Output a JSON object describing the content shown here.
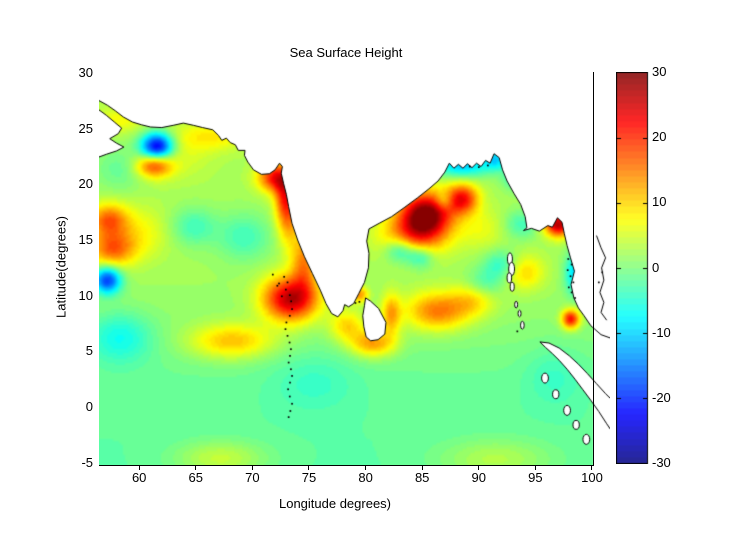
{
  "figure": {
    "title": "Sea Surface Height"
  },
  "axes": {
    "xlabel": "Longitude degrees)",
    "ylabel": "Latitude(degrees)",
    "x_ticks": [
      60,
      65,
      70,
      75,
      80,
      85,
      90,
      95,
      100
    ],
    "y_ticks": [
      30,
      25,
      20,
      15,
      10,
      5,
      0,
      -5
    ]
  },
  "colorbar": {
    "min": -30,
    "max": 30,
    "ticks": [
      30,
      20,
      10,
      0,
      -10,
      -20,
      -30
    ],
    "colormap": "jet"
  },
  "chart_data": {
    "type": "heatmap",
    "title": "Sea Surface Height",
    "xlabel": "Longitude degrees)",
    "ylabel": "Latitude(degrees)",
    "region": "Indian Ocean (Arabian Sea, Bay of Bengal, Andaman Sea)",
    "lon_range": [
      56.45,
      100.1
    ],
    "lat_range": [
      -5.2,
      30.0
    ],
    "value_range": [
      -30,
      30
    ],
    "grid": false,
    "base_field": {
      "north": 2.4,
      "south": -2.0,
      "transition_lat": 6.0,
      "transition_width": 2.5
    },
    "anomaly_format": [
      "lon",
      "lat",
      "amplitude",
      "sigma_lon",
      "sigma_lat"
    ],
    "anomalies": [
      [
        61.6,
        23.4,
        -27,
        1.0,
        0.85
      ],
      [
        61.3,
        21.7,
        16,
        1.1,
        0.75
      ],
      [
        58.3,
        25.8,
        5,
        1.4,
        0.8
      ],
      [
        66.5,
        24.3,
        6,
        2.2,
        0.9
      ],
      [
        72.1,
        20.6,
        19,
        1.1,
        0.9
      ],
      [
        72.9,
        19.0,
        13,
        0.65,
        1.4
      ],
      [
        73.2,
        17.0,
        11,
        0.7,
        1.8
      ],
      [
        74.6,
        13.0,
        12,
        0.8,
        1.8
      ],
      [
        57.3,
        16.8,
        14,
        1.2,
        1.0
      ],
      [
        57.6,
        14.2,
        14,
        1.4,
        1.1
      ],
      [
        60.0,
        15.6,
        5,
        1.8,
        1.6
      ],
      [
        57.2,
        11.4,
        -21,
        0.85,
        0.85
      ],
      [
        58.3,
        6.3,
        -7,
        2.0,
        1.6
      ],
      [
        64.8,
        16.2,
        -6,
        1.4,
        1.2
      ],
      [
        69.3,
        15.3,
        -6,
        1.7,
        1.5
      ],
      [
        58.3,
        21.4,
        -4,
        1.6,
        1.4
      ],
      [
        73.4,
        9.7,
        25,
        1.7,
        1.4
      ],
      [
        68.2,
        5.9,
        11,
        2.6,
        1.1
      ],
      [
        79.5,
        10.1,
        12,
        0.55,
        0.5
      ],
      [
        80.7,
        5.7,
        13,
        1.4,
        0.85
      ],
      [
        78.4,
        7.3,
        9,
        1.1,
        1.0
      ],
      [
        85.4,
        17.3,
        28,
        1.6,
        1.4
      ],
      [
        88.6,
        18.7,
        19,
        1.0,
        0.95
      ],
      [
        84.2,
        15.3,
        13,
        2.0,
        1.4
      ],
      [
        88.6,
        21.7,
        -13,
        1.7,
        0.75
      ],
      [
        91.6,
        22.3,
        -11,
        0.8,
        0.7
      ],
      [
        83.1,
        14.1,
        -11,
        0.95,
        0.8
      ],
      [
        84.9,
        13.5,
        -9,
        0.85,
        0.75
      ],
      [
        86.4,
        8.6,
        14,
        2.0,
        1.2
      ],
      [
        89.6,
        9.6,
        7,
        1.4,
        1.0
      ],
      [
        97.1,
        16.4,
        25,
        0.85,
        0.75
      ],
      [
        93.8,
        16.4,
        -6,
        1.1,
        0.9
      ],
      [
        94.1,
        12.1,
        8,
        1.2,
        1.1
      ],
      [
        92.1,
        12.8,
        -7,
        1.1,
        0.95
      ],
      [
        90.6,
        11.1,
        -5,
        1.1,
        0.95
      ],
      [
        98.2,
        7.9,
        21,
        0.55,
        0.6
      ],
      [
        98.5,
        12.0,
        -11,
        0.6,
        1.3
      ],
      [
        67.2,
        -4.6,
        6,
        2.8,
        1.1
      ],
      [
        91.5,
        -4.7,
        5,
        3.5,
        1.3
      ],
      [
        96.8,
        2.8,
        -3,
        1.8,
        1.8
      ],
      [
        75.5,
        2.3,
        -3,
        2.6,
        1.8
      ],
      [
        82.3,
        8.3,
        11,
        0.6,
        1.3
      ],
      [
        87.0,
        18.5,
        -7,
        0.55,
        0.55
      ],
      [
        90.3,
        16.0,
        4,
        1.6,
        1.3
      ],
      [
        63.5,
        22.6,
        3,
        2.0,
        1.5
      ],
      [
        93.1,
        20.6,
        -6,
        0.7,
        0.8
      ]
    ],
    "coastlines": {
      "mainland": [
        [
          56.4,
          27.55
        ],
        [
          57.2,
          27.1
        ],
        [
          57.9,
          26.6
        ],
        [
          58.6,
          26.05
        ],
        [
          59.4,
          25.6
        ],
        [
          60.2,
          25.35
        ],
        [
          61.0,
          25.15
        ],
        [
          62.0,
          25.1
        ],
        [
          63.0,
          25.3
        ],
        [
          63.9,
          25.5
        ],
        [
          64.8,
          25.3
        ],
        [
          65.6,
          25.1
        ],
        [
          66.5,
          24.9
        ],
        [
          67.0,
          24.4
        ],
        [
          67.3,
          23.95
        ],
        [
          67.7,
          24.15
        ],
        [
          68.05,
          23.75
        ],
        [
          68.5,
          23.55
        ],
        [
          68.75,
          23.05
        ],
        [
          69.35,
          23.05
        ],
        [
          69.3,
          22.6
        ],
        [
          69.6,
          22.0
        ],
        [
          70.1,
          21.3
        ],
        [
          70.8,
          20.9
        ],
        [
          71.5,
          20.95
        ],
        [
          72.0,
          21.3
        ],
        [
          72.4,
          21.9
        ],
        [
          72.65,
          21.6
        ],
        [
          72.55,
          21.0
        ],
        [
          72.75,
          20.1
        ],
        [
          73.0,
          19.1
        ],
        [
          73.2,
          18.0
        ],
        [
          73.5,
          16.5
        ],
        [
          74.0,
          15.0
        ],
        [
          74.6,
          13.5
        ],
        [
          75.3,
          12.0
        ],
        [
          76.0,
          10.5
        ],
        [
          76.5,
          9.3
        ],
        [
          77.0,
          8.4
        ],
        [
          77.55,
          8.1
        ],
        [
          78.0,
          8.65
        ],
        [
          78.15,
          9.2
        ],
        [
          78.5,
          9.0
        ],
        [
          78.95,
          9.3
        ],
        [
          79.4,
          10.2
        ],
        [
          79.9,
          11.2
        ],
        [
          80.25,
          12.5
        ],
        [
          80.3,
          13.8
        ],
        [
          80.1,
          14.9
        ],
        [
          80.3,
          16.0
        ],
        [
          81.2,
          16.5
        ],
        [
          82.3,
          17.1
        ],
        [
          83.4,
          17.9
        ],
        [
          84.6,
          18.8
        ],
        [
          85.6,
          19.6
        ],
        [
          86.4,
          20.3
        ],
        [
          87.0,
          21.1
        ],
        [
          87.4,
          21.9
        ],
        [
          87.8,
          21.45
        ],
        [
          88.2,
          21.8
        ],
        [
          88.6,
          21.45
        ],
        [
          89.0,
          21.85
        ],
        [
          89.4,
          21.5
        ],
        [
          89.8,
          21.9
        ],
        [
          90.2,
          21.6
        ],
        [
          90.6,
          22.15
        ],
        [
          91.0,
          21.9
        ],
        [
          91.35,
          22.75
        ],
        [
          91.8,
          22.4
        ],
        [
          92.1,
          21.3
        ],
        [
          92.5,
          20.3
        ],
        [
          93.1,
          19.2
        ],
        [
          93.7,
          18.2
        ],
        [
          94.1,
          17.1
        ],
        [
          94.25,
          16.1
        ],
        [
          93.95,
          15.85
        ],
        [
          94.65,
          16.05
        ],
        [
          95.35,
          15.8
        ],
        [
          96.1,
          16.3
        ],
        [
          96.5,
          16.15
        ],
        [
          96.95,
          17.0
        ],
        [
          97.35,
          16.6
        ],
        [
          97.55,
          15.6
        ],
        [
          97.8,
          14.5
        ],
        [
          98.1,
          13.4
        ],
        [
          98.45,
          12.2
        ],
        [
          98.15,
          11.0
        ],
        [
          98.4,
          9.8
        ],
        [
          98.8,
          8.9
        ],
        [
          99.3,
          8.2
        ],
        [
          99.9,
          7.3
        ],
        [
          100.8,
          6.5
        ],
        [
          101.9,
          6.1
        ],
        [
          101.9,
          30.6
        ],
        [
          56.4,
          30.6
        ]
      ],
      "arabia": [
        [
          56.3,
          26.8
        ],
        [
          57.1,
          26.2
        ],
        [
          57.8,
          25.6
        ],
        [
          58.45,
          25.05
        ],
        [
          58.15,
          24.55
        ],
        [
          57.4,
          24.1
        ],
        [
          58.0,
          23.7
        ],
        [
          58.65,
          23.35
        ],
        [
          58.0,
          23.0
        ],
        [
          57.1,
          22.7
        ],
        [
          56.3,
          22.4
        ]
      ],
      "sri_lanka": [
        [
          80.0,
          9.8
        ],
        [
          80.45,
          9.5
        ],
        [
          81.15,
          8.85
        ],
        [
          81.8,
          7.6
        ],
        [
          81.7,
          6.55
        ],
        [
          81.1,
          6.05
        ],
        [
          80.45,
          5.95
        ],
        [
          80.05,
          6.3
        ],
        [
          79.85,
          7.2
        ],
        [
          79.75,
          8.2
        ],
        [
          79.9,
          9.1
        ]
      ],
      "sumatra": [
        [
          95.4,
          5.85
        ],
        [
          95.9,
          5.35
        ],
        [
          96.5,
          4.8
        ],
        [
          97.1,
          4.2
        ],
        [
          97.8,
          3.4
        ],
        [
          98.5,
          2.5
        ],
        [
          99.2,
          1.55
        ],
        [
          99.9,
          0.6
        ],
        [
          100.6,
          -0.4
        ],
        [
          101.3,
          -1.5
        ],
        [
          101.9,
          -2.4
        ],
        [
          101.9,
          0.5
        ],
        [
          101.2,
          1.2
        ],
        [
          100.4,
          2.1
        ],
        [
          99.6,
          3.0
        ],
        [
          98.8,
          3.85
        ],
        [
          98.0,
          4.6
        ],
        [
          97.1,
          5.3
        ],
        [
          96.2,
          5.75
        ]
      ]
    },
    "island_ellipse_format": [
      "lon",
      "lat",
      "radius_lon",
      "radius_lat"
    ],
    "island_ellipses": [
      [
        92.75,
        13.3,
        0.22,
        0.55
      ],
      [
        92.9,
        12.4,
        0.26,
        0.6
      ],
      [
        92.7,
        11.6,
        0.2,
        0.45
      ],
      [
        92.95,
        10.8,
        0.18,
        0.4
      ],
      [
        93.3,
        9.2,
        0.13,
        0.3
      ],
      [
        93.6,
        8.4,
        0.13,
        0.3
      ],
      [
        93.85,
        7.35,
        0.16,
        0.35
      ],
      [
        95.85,
        2.6,
        0.3,
        0.45
      ],
      [
        96.8,
        1.15,
        0.28,
        0.4
      ],
      [
        97.8,
        -0.3,
        0.3,
        0.45
      ],
      [
        98.6,
        -1.6,
        0.28,
        0.4
      ],
      [
        99.5,
        -2.9,
        0.3,
        0.45
      ]
    ],
    "island_dots": [
      [
        71.8,
        11.9
      ],
      [
        72.2,
        10.9
      ],
      [
        72.8,
        11.7
      ],
      [
        73.1,
        11.2
      ],
      [
        72.35,
        11.1
      ],
      [
        72.95,
        10.55
      ],
      [
        73.3,
        10.05
      ],
      [
        72.6,
        9.95
      ],
      [
        73.42,
        9.5
      ],
      [
        73.5,
        8.8
      ],
      [
        73.3,
        8.2
      ],
      [
        73.0,
        7.6
      ],
      [
        72.92,
        7.0
      ],
      [
        73.1,
        6.4
      ],
      [
        73.28,
        5.8
      ],
      [
        73.4,
        5.2
      ],
      [
        73.32,
        4.6
      ],
      [
        73.2,
        4.0
      ],
      [
        73.4,
        3.4
      ],
      [
        73.5,
        2.8
      ],
      [
        73.32,
        2.2
      ],
      [
        73.15,
        1.6
      ],
      [
        73.3,
        0.95
      ],
      [
        73.5,
        0.3
      ],
      [
        73.35,
        -0.35
      ],
      [
        73.2,
        -0.9
      ],
      [
        79.1,
        9.35
      ],
      [
        79.45,
        9.45
      ],
      [
        97.9,
        13.3
      ],
      [
        98.2,
        12.8
      ],
      [
        97.85,
        12.3
      ],
      [
        98.1,
        11.75
      ],
      [
        98.35,
        11.2
      ],
      [
        97.95,
        10.75
      ],
      [
        98.2,
        10.3
      ],
      [
        98.5,
        9.8
      ],
      [
        89.2,
        21.6
      ],
      [
        90.0,
        21.55
      ],
      [
        90.8,
        21.7
      ],
      [
        93.4,
        6.8
      ],
      [
        100.9,
        12.1
      ],
      [
        100.6,
        11.2
      ]
    ],
    "extra_coast_polylines": [
      [
        [
          100.4,
          15.4
        ],
        [
          100.8,
          14.3
        ],
        [
          101.2,
          13.4
        ],
        [
          100.85,
          12.5
        ],
        [
          101.05,
          11.4
        ],
        [
          100.7,
          10.3
        ],
        [
          101.05,
          9.4
        ],
        [
          100.8,
          8.5
        ],
        [
          101.3,
          7.8
        ]
      ]
    ]
  }
}
